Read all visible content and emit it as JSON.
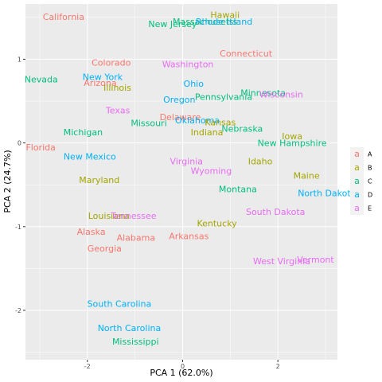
{
  "chart_data": {
    "type": "scatter",
    "title": "",
    "xlabel": "PCA 1 (62.0%)",
    "ylabel": "PCA 2 (24.7%)",
    "xlim": [
      -3.3,
      3.25
    ],
    "ylim": [
      -2.59,
      1.66
    ],
    "xticks": [
      -2,
      0,
      2
    ],
    "yticks": [
      -2,
      -1,
      0,
      1
    ],
    "xtick_labels": [
      "-2",
      "0",
      "2"
    ],
    "ytick_labels": [
      "-2",
      "-1",
      "0",
      "1"
    ],
    "grid": true,
    "legend_position": "right",
    "series": [
      {
        "name": "A",
        "color": "#F8766D"
      },
      {
        "name": "B",
        "color": "#A3A500"
      },
      {
        "name": "C",
        "color": "#00BF7D"
      },
      {
        "name": "D",
        "color": "#00B0F6"
      },
      {
        "name": "E",
        "color": "#E76BF3"
      }
    ],
    "points": [
      {
        "label": "California",
        "group": "A",
        "x": -2.5,
        "y": 1.51
      },
      {
        "label": "Hawaii",
        "group": "B",
        "x": 0.89,
        "y": 1.53
      },
      {
        "label": "Massachusetts",
        "group": "C",
        "x": 0.47,
        "y": 1.45
      },
      {
        "label": "Rhode Island",
        "group": "D",
        "x": 0.87,
        "y": 1.45
      },
      {
        "label": "New Jersey",
        "group": "C",
        "x": -0.21,
        "y": 1.42
      },
      {
        "label": "Connecticut",
        "group": "A",
        "x": 1.33,
        "y": 1.07
      },
      {
        "label": "Colorado",
        "group": "A",
        "x": -1.5,
        "y": 0.96
      },
      {
        "label": "Washington",
        "group": "E",
        "x": 0.11,
        "y": 0.94
      },
      {
        "label": "Nevada",
        "group": "C",
        "x": -2.97,
        "y": 0.76
      },
      {
        "label": "New York",
        "group": "D",
        "x": -1.68,
        "y": 0.79
      },
      {
        "label": "Arizona",
        "group": "A",
        "x": -1.73,
        "y": 0.72
      },
      {
        "label": "Illinois",
        "group": "B",
        "x": -1.37,
        "y": 0.66
      },
      {
        "label": "Ohio",
        "group": "D",
        "x": 0.23,
        "y": 0.71
      },
      {
        "label": "Minnesota",
        "group": "C",
        "x": 1.69,
        "y": 0.6
      },
      {
        "label": "Wisconsin",
        "group": "E",
        "x": 2.07,
        "y": 0.58
      },
      {
        "label": "Pennsylvania",
        "group": "C",
        "x": 0.86,
        "y": 0.55
      },
      {
        "label": "Oregon",
        "group": "D",
        "x": -0.07,
        "y": 0.52
      },
      {
        "label": "Texas",
        "group": "E",
        "x": -1.36,
        "y": 0.39
      },
      {
        "label": "Delaware",
        "group": "A",
        "x": -0.05,
        "y": 0.31
      },
      {
        "label": "Oklahoma",
        "group": "D",
        "x": 0.31,
        "y": 0.27
      },
      {
        "label": "Kansas",
        "group": "B",
        "x": 0.79,
        "y": 0.25
      },
      {
        "label": "Missouri",
        "group": "C",
        "x": -0.71,
        "y": 0.24
      },
      {
        "label": "Nebraska",
        "group": "C",
        "x": 1.25,
        "y": 0.17
      },
      {
        "label": "Indiana",
        "group": "B",
        "x": 0.51,
        "y": 0.13
      },
      {
        "label": "Iowa",
        "group": "B",
        "x": 2.3,
        "y": 0.08
      },
      {
        "label": "Michigan",
        "group": "C",
        "x": -2.09,
        "y": 0.13
      },
      {
        "label": "New Hampshire",
        "group": "C",
        "x": 2.3,
        "y": 0.0
      },
      {
        "label": "Florida",
        "group": "A",
        "x": -2.98,
        "y": -0.05
      },
      {
        "label": "New Mexico",
        "group": "D",
        "x": -1.95,
        "y": -0.16
      },
      {
        "label": "Virginia",
        "group": "E",
        "x": 0.08,
        "y": -0.22
      },
      {
        "label": "Idaho",
        "group": "B",
        "x": 1.63,
        "y": -0.22
      },
      {
        "label": "Wyoming",
        "group": "E",
        "x": 0.6,
        "y": -0.33
      },
      {
        "label": "Maine",
        "group": "B",
        "x": 2.6,
        "y": -0.39
      },
      {
        "label": "Maryland",
        "group": "B",
        "x": -1.75,
        "y": -0.44
      },
      {
        "label": "Montana",
        "group": "C",
        "x": 1.16,
        "y": -0.55
      },
      {
        "label": "North Dakota",
        "group": "D",
        "x": 3.03,
        "y": -0.6
      },
      {
        "label": "South Dakota",
        "group": "E",
        "x": 1.95,
        "y": -0.82
      },
      {
        "label": "Louisiana",
        "group": "B",
        "x": -1.55,
        "y": -0.87
      },
      {
        "label": "Tennessee",
        "group": "E",
        "x": -1.03,
        "y": -0.87
      },
      {
        "label": "Kentucky",
        "group": "B",
        "x": 0.72,
        "y": -0.96
      },
      {
        "label": "Alaska",
        "group": "A",
        "x": -1.92,
        "y": -1.06
      },
      {
        "label": "Arkansas",
        "group": "A",
        "x": 0.13,
        "y": -1.11
      },
      {
        "label": "Alabama",
        "group": "A",
        "x": -0.98,
        "y": -1.13
      },
      {
        "label": "Georgia",
        "group": "A",
        "x": -1.64,
        "y": -1.26
      },
      {
        "label": "West Virginia",
        "group": "E",
        "x": 2.08,
        "y": -1.41
      },
      {
        "label": "Vermont",
        "group": "E",
        "x": 2.79,
        "y": -1.39
      },
      {
        "label": "South Carolina",
        "group": "D",
        "x": -1.33,
        "y": -1.92
      },
      {
        "label": "North Carolina",
        "group": "D",
        "x": -1.12,
        "y": -2.21
      },
      {
        "label": "Mississippi",
        "group": "C",
        "x": -0.99,
        "y": -2.37
      }
    ]
  }
}
